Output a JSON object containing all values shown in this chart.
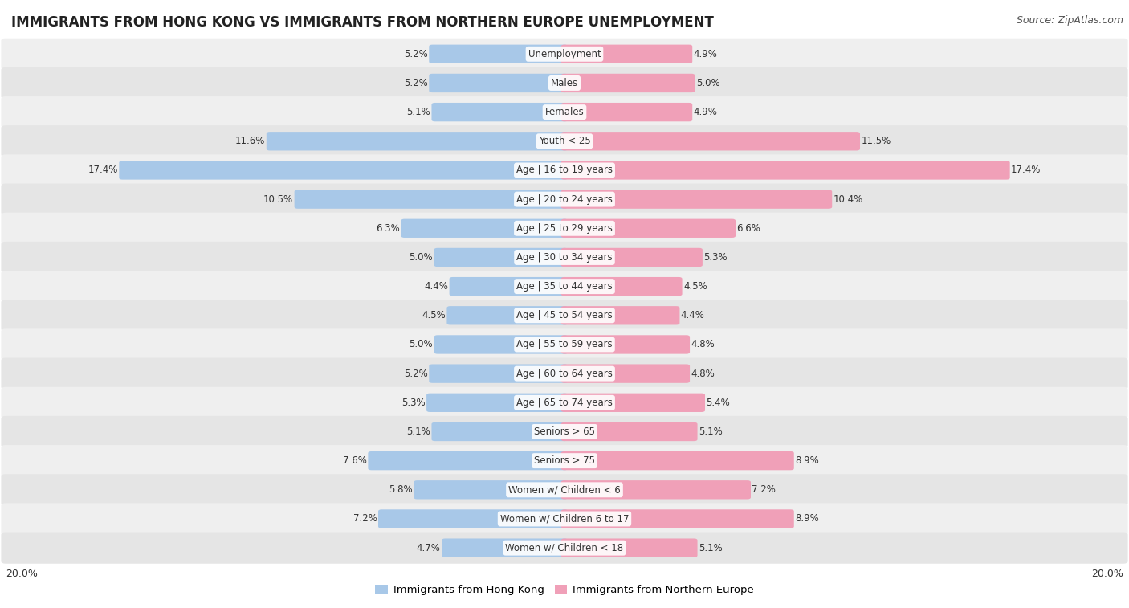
{
  "title": "IMMIGRANTS FROM HONG KONG VS IMMIGRANTS FROM NORTHERN EUROPE UNEMPLOYMENT",
  "source": "Source: ZipAtlas.com",
  "categories": [
    "Unemployment",
    "Males",
    "Females",
    "Youth < 25",
    "Age | 16 to 19 years",
    "Age | 20 to 24 years",
    "Age | 25 to 29 years",
    "Age | 30 to 34 years",
    "Age | 35 to 44 years",
    "Age | 45 to 54 years",
    "Age | 55 to 59 years",
    "Age | 60 to 64 years",
    "Age | 65 to 74 years",
    "Seniors > 65",
    "Seniors > 75",
    "Women w/ Children < 6",
    "Women w/ Children 6 to 17",
    "Women w/ Children < 18"
  ],
  "hong_kong": [
    5.2,
    5.2,
    5.1,
    11.6,
    17.4,
    10.5,
    6.3,
    5.0,
    4.4,
    4.5,
    5.0,
    5.2,
    5.3,
    5.1,
    7.6,
    5.8,
    7.2,
    4.7
  ],
  "northern_europe": [
    4.9,
    5.0,
    4.9,
    11.5,
    17.4,
    10.4,
    6.6,
    5.3,
    4.5,
    4.4,
    4.8,
    4.8,
    5.4,
    5.1,
    8.9,
    7.2,
    8.9,
    5.1
  ],
  "hk_color": "#a8c8e8",
  "ne_color": "#f0a0b8",
  "row_bg_even": "#efefef",
  "row_bg_odd": "#e5e5e5",
  "max_val": 20.0,
  "axis_label_left": "20.0%",
  "axis_label_right": "20.0%",
  "legend_hk": "Immigrants from Hong Kong",
  "legend_ne": "Immigrants from Northern Europe",
  "title_fontsize": 12,
  "source_fontsize": 9,
  "label_fontsize": 8.5,
  "cat_fontsize": 8.5
}
